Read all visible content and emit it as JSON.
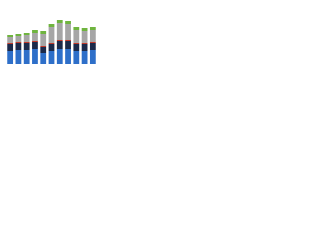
{
  "chart_data": {
    "type": "stacked-bar",
    "categories": [
      null,
      null,
      null,
      null,
      null,
      null,
      null,
      null,
      null,
      null,
      null
    ],
    "series": [
      {
        "name": null,
        "color": "#2e6fc9",
        "values": [
          13,
          14,
          14,
          15,
          11,
          13,
          15,
          15,
          13,
          13,
          14
        ]
      },
      {
        "name": null,
        "color": "#1c2a4a",
        "values": [
          7,
          7,
          7,
          7,
          6,
          7,
          8,
          8,
          7,
          7,
          7
        ]
      },
      {
        "name": null,
        "color": "#c0392b",
        "values": [
          1,
          1,
          1,
          1,
          1,
          1,
          1,
          1,
          1,
          1,
          1
        ]
      },
      {
        "name": null,
        "color": "#a6a6a6",
        "values": [
          6,
          6,
          7,
          8,
          12,
          16,
          17,
          16,
          13,
          12,
          12
        ]
      },
      {
        "name": null,
        "color": "#6fb43f",
        "values": [
          2,
          2,
          2,
          3,
          3,
          3,
          3,
          3,
          3,
          3,
          3
        ]
      }
    ],
    "ylim": [
      0,
      60
    ]
  }
}
